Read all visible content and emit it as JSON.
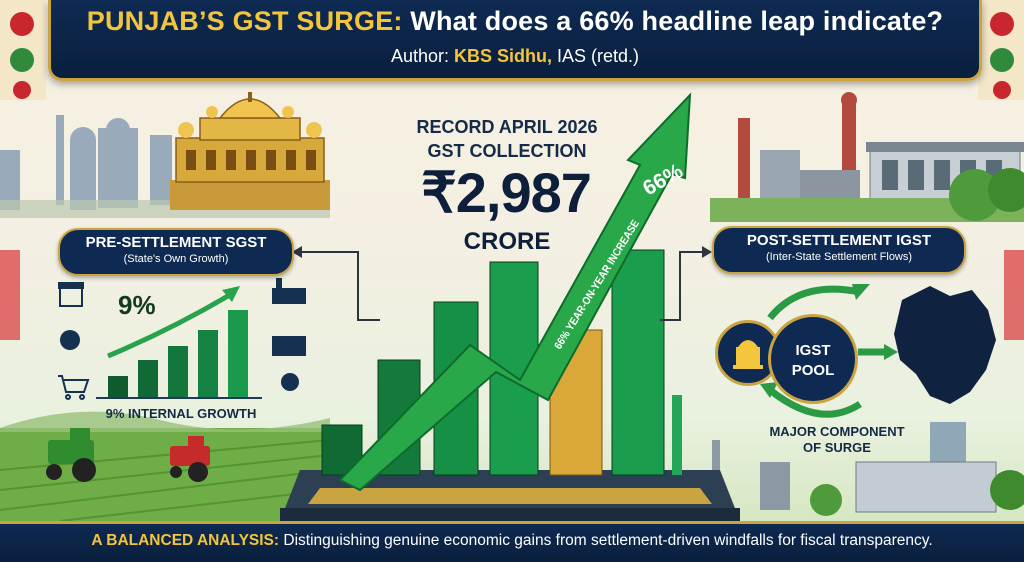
{
  "header": {
    "title_highlight": "PUNJAB’S GST SURGE:",
    "title_rest": " What does a 66% headline leap indicate?",
    "author_prefix": "Author: ",
    "author_name": "KBS Sidhu,",
    "author_suffix": " IAS (retd.)"
  },
  "center": {
    "record_line1": "RECORD APRIL 2026",
    "record_line2": "GST COLLECTION",
    "amount": "₹2,987",
    "unit": "CRORE",
    "arrow_percent": "66%",
    "arrow_caption": "66% YEAR-ON-YEAR INCREASE"
  },
  "left_panel": {
    "title": "PRE-SETTLEMENT SGST",
    "subtitle": "(State's Own Growth)",
    "percent": "9%",
    "caption": "9% INTERNAL GROWTH"
  },
  "right_panel": {
    "title": "POST-SETTLEMENT IGST",
    "subtitle": "(Inter-State Settlement Flows)",
    "pool_line1": "IGST",
    "pool_line2": "POOL",
    "caption_line1": "MAJOR COMPONENT",
    "caption_line2": "OF SURGE"
  },
  "footer": {
    "highlight": "A BALANCED ANALYSIS:",
    "text": " Distinguishing genuine economic gains from settlement-driven windfalls for fiscal transparency."
  },
  "colors": {
    "navy": "#0e2a52",
    "gold": "#c9a441",
    "accent_yellow": "#f2c53d",
    "green": "#1f8a3a"
  },
  "icons": [
    "golden-temple-icon",
    "factory-icon",
    "tractor-icon",
    "shop-icon",
    "cart-icon",
    "government-icon",
    "punjab-map-icon"
  ]
}
